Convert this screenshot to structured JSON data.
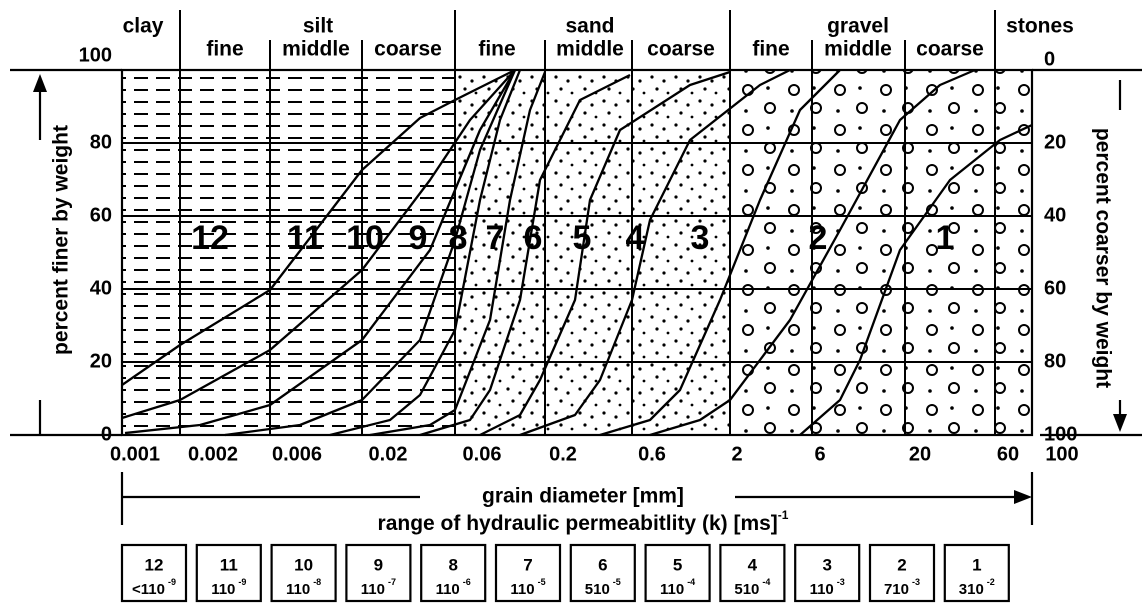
{
  "header": {
    "groups": [
      {
        "name": "clay",
        "subs": []
      },
      {
        "name": "silt",
        "subs": [
          "fine",
          "middle",
          "coarse"
        ]
      },
      {
        "name": "sand",
        "subs": [
          "fine",
          "middle",
          "coarse"
        ]
      },
      {
        "name": "gravel",
        "subs": [
          "fine",
          "middle",
          "coarse"
        ]
      },
      {
        "name": "stones",
        "subs": []
      }
    ]
  },
  "y_left": {
    "label": "percent finer by weight",
    "ticks": [
      100,
      80,
      60,
      40,
      20,
      0
    ]
  },
  "y_right": {
    "label": "percent coarser by weight",
    "ticks": [
      0,
      20,
      40,
      60,
      80,
      100
    ]
  },
  "x_ticks": [
    0.001,
    0.002,
    0.006,
    0.02,
    0.06,
    0.2,
    0.6,
    2,
    6,
    20,
    60,
    100
  ],
  "x_label": "grain diameter [mm]",
  "zones": [
    12,
    11,
    10,
    9,
    8,
    7,
    6,
    5,
    4,
    3,
    2,
    1
  ],
  "permeability": {
    "label": "range of hydraulic permeabitlity (k) [ms]",
    "unit_exp": "-1",
    "boxes": [
      {
        "zone": 12,
        "value": "<110",
        "exp": "-9"
      },
      {
        "zone": 11,
        "value": "110",
        "exp": "-9"
      },
      {
        "zone": 10,
        "value": "110",
        "exp": "-8"
      },
      {
        "zone": 9,
        "value": "110",
        "exp": "-7"
      },
      {
        "zone": 8,
        "value": "110",
        "exp": "-6"
      },
      {
        "zone": 7,
        "value": "110",
        "exp": "-5"
      },
      {
        "zone": 6,
        "value": "510",
        "exp": "-5"
      },
      {
        "zone": 5,
        "value": "110",
        "exp": "-4"
      },
      {
        "zone": 4,
        "value": "510",
        "exp": "-4"
      },
      {
        "zone": 3,
        "value": "110",
        "exp": "-3"
      },
      {
        "zone": 2,
        "value": "710",
        "exp": "-3"
      },
      {
        "zone": 1,
        "value": "310",
        "exp": "-2"
      }
    ]
  }
}
